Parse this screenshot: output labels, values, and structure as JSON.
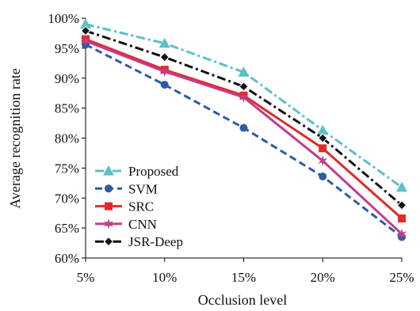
{
  "chart_data": {
    "type": "line",
    "title": "",
    "xlabel": "Occlusion level",
    "ylabel": "Average recognition rate",
    "categories": [
      "5%",
      "10%",
      "15%",
      "20%",
      "25%"
    ],
    "ylim": [
      60,
      100
    ],
    "yticks": [
      60,
      65,
      70,
      75,
      80,
      85,
      90,
      95,
      100
    ],
    "ytick_labels": [
      "60%",
      "65%",
      "70%",
      "75%",
      "80%",
      "85%",
      "90%",
      "95%",
      "100%"
    ],
    "grid": false,
    "legend_position": "bottom-left",
    "series": [
      {
        "name": "Proposed",
        "values": [
          99.0,
          95.8,
          91.0,
          81.3,
          71.8
        ],
        "color": "#5bc0c8",
        "dash": "dashdot",
        "marker": "triangle"
      },
      {
        "name": "SVM",
        "values": [
          95.6,
          88.9,
          81.7,
          73.6,
          63.5
        ],
        "color": "#2f5aa6",
        "dash": "dash",
        "marker": "circle"
      },
      {
        "name": "SRC",
        "values": [
          96.5,
          91.4,
          87.1,
          78.3,
          66.6
        ],
        "color": "#e02a2a",
        "dash": "solid",
        "marker": "square"
      },
      {
        "name": "CNN",
        "values": [
          96.2,
          91.1,
          86.8,
          76.2,
          64.0
        ],
        "color": "#c43c8a",
        "dash": "solid",
        "marker": "star"
      },
      {
        "name": "JSR-Deep",
        "values": [
          97.9,
          93.5,
          88.6,
          80.0,
          68.8
        ],
        "color": "#111111",
        "dash": "dashdot",
        "marker": "diamond"
      }
    ]
  }
}
